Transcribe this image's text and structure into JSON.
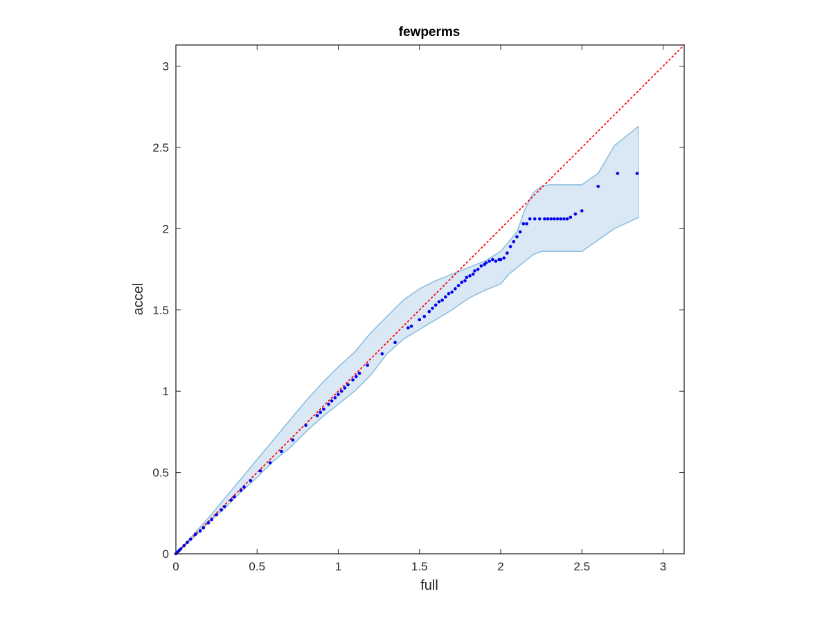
{
  "chart_data": {
    "type": "scatter",
    "title": "fewperms",
    "xlabel": "full",
    "ylabel": "accel",
    "xlim": [
      0,
      3.13
    ],
    "ylim": [
      0,
      3.13
    ],
    "xticks": [
      0,
      0.5,
      1,
      1.5,
      2,
      2.5,
      3
    ],
    "yticks": [
      0,
      0.5,
      1,
      1.5,
      2,
      2.5,
      3
    ],
    "xtick_labels": [
      "0",
      "0.5",
      "1",
      "1.5",
      "2",
      "2.5",
      "3"
    ],
    "ytick_labels": [
      "0",
      "0.5",
      "1",
      "1.5",
      "2",
      "2.5",
      "3"
    ],
    "grid": false,
    "box": true,
    "colors": {
      "points": "#0000ee",
      "reference_line": "#ff0000",
      "band_fill": "#d9e8f4",
      "band_edge": "#8fbfdf"
    },
    "reference_line": {
      "x": [
        0,
        3.13
      ],
      "y": [
        0,
        3.13
      ],
      "style": "dotted"
    },
    "band": {
      "x": [
        0,
        0.1,
        0.2,
        0.3,
        0.4,
        0.5,
        0.6,
        0.7,
        0.8,
        0.9,
        1.0,
        1.1,
        1.2,
        1.3,
        1.4,
        1.5,
        1.6,
        1.7,
        1.8,
        1.9,
        2.0,
        2.05,
        2.1,
        2.15,
        2.2,
        2.25,
        2.3,
        2.4,
        2.5,
        2.6,
        2.7,
        2.85
      ],
      "upper": [
        0,
        0.11,
        0.22,
        0.34,
        0.46,
        0.58,
        0.7,
        0.82,
        0.94,
        1.05,
        1.15,
        1.24,
        1.36,
        1.46,
        1.56,
        1.63,
        1.68,
        1.72,
        1.76,
        1.8,
        1.86,
        1.92,
        1.98,
        2.12,
        2.22,
        2.26,
        2.27,
        2.27,
        2.27,
        2.34,
        2.51,
        2.63
      ],
      "lower": [
        0,
        0.09,
        0.19,
        0.28,
        0.38,
        0.47,
        0.57,
        0.65,
        0.75,
        0.84,
        0.92,
        1.0,
        1.1,
        1.23,
        1.32,
        1.38,
        1.44,
        1.5,
        1.57,
        1.62,
        1.66,
        1.72,
        1.76,
        1.8,
        1.84,
        1.86,
        1.86,
        1.86,
        1.86,
        1.93,
        2.0,
        2.07
      ]
    },
    "points": {
      "x": [
        0,
        0.01,
        0.02,
        0.03,
        0.05,
        0.07,
        0.09,
        0.12,
        0.15,
        0.17,
        0.2,
        0.22,
        0.25,
        0.28,
        0.3,
        0.34,
        0.36,
        0.4,
        0.42,
        0.46,
        0.52,
        0.58,
        0.65,
        0.72,
        0.8,
        0.87,
        0.89,
        0.91,
        0.94,
        0.96,
        0.98,
        1.0,
        1.02,
        1.04,
        1.06,
        1.09,
        1.11,
        1.13,
        1.18,
        1.27,
        1.35,
        1.43,
        1.45,
        1.5,
        1.53,
        1.56,
        1.58,
        1.6,
        1.62,
        1.64,
        1.66,
        1.68,
        1.7,
        1.72,
        1.74,
        1.76,
        1.78,
        1.79,
        1.81,
        1.83,
        1.84,
        1.86,
        1.88,
        1.9,
        1.91,
        1.93,
        1.95,
        1.97,
        1.99,
        2.0,
        2.02,
        2.04,
        2.06,
        2.08,
        2.1,
        2.12,
        2.14,
        2.16,
        2.18,
        2.21,
        2.24,
        2.27,
        2.29,
        2.31,
        2.33,
        2.35,
        2.37,
        2.39,
        2.41,
        2.43,
        2.46,
        2.5,
        2.6,
        2.72,
        2.84
      ],
      "y": [
        0,
        0.01,
        0.02,
        0.03,
        0.05,
        0.07,
        0.09,
        0.12,
        0.14,
        0.16,
        0.19,
        0.21,
        0.24,
        0.27,
        0.29,
        0.33,
        0.35,
        0.39,
        0.41,
        0.45,
        0.51,
        0.56,
        0.63,
        0.7,
        0.79,
        0.85,
        0.87,
        0.89,
        0.92,
        0.94,
        0.96,
        0.98,
        1.0,
        1.02,
        1.04,
        1.07,
        1.09,
        1.11,
        1.16,
        1.23,
        1.3,
        1.39,
        1.4,
        1.44,
        1.46,
        1.49,
        1.51,
        1.53,
        1.55,
        1.56,
        1.58,
        1.6,
        1.61,
        1.63,
        1.65,
        1.67,
        1.68,
        1.7,
        1.71,
        1.72,
        1.74,
        1.75,
        1.77,
        1.78,
        1.79,
        1.8,
        1.81,
        1.8,
        1.81,
        1.81,
        1.82,
        1.85,
        1.89,
        1.92,
        1.95,
        1.98,
        2.03,
        2.03,
        2.06,
        2.06,
        2.06,
        2.06,
        2.06,
        2.06,
        2.06,
        2.06,
        2.06,
        2.06,
        2.06,
        2.07,
        2.09,
        2.11,
        2.26,
        2.34,
        2.34
      ]
    }
  }
}
